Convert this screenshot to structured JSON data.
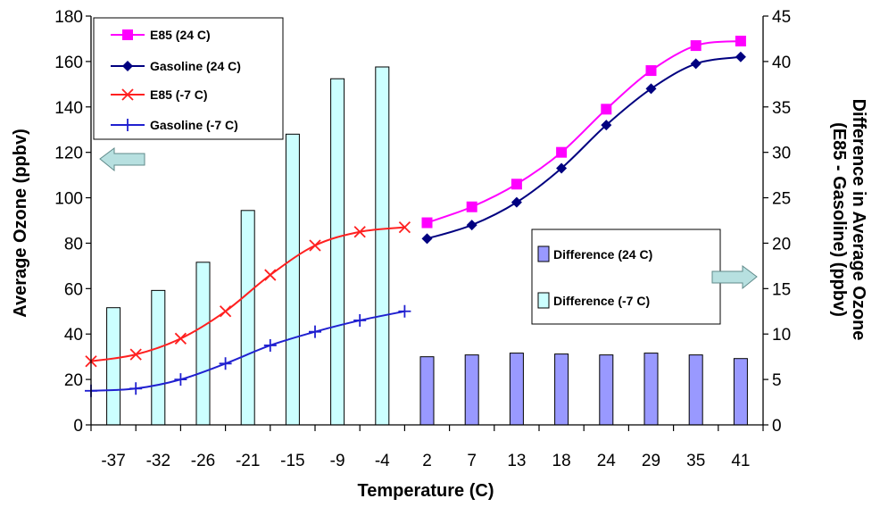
{
  "chart_data": {
    "type": "bar+line",
    "xlabel": "Temperature (C)",
    "ylabel_left": "Average Ozone (ppbv)",
    "ylabel_right_line1": "Difference in Average Ozone",
    "ylabel_right_line2": "(E85 - Gasoline) (ppbv)",
    "categories": [
      "-37",
      "-32",
      "-26",
      "-21",
      "-15",
      "-9",
      "-4",
      "2",
      "7",
      "13",
      "18",
      "24",
      "29",
      "35",
      "41"
    ],
    "ylim_left": [
      0,
      180
    ],
    "yticks_left": [
      0,
      20,
      40,
      60,
      80,
      100,
      120,
      140,
      160,
      180
    ],
    "ylim_right": [
      0,
      45
    ],
    "yticks_right": [
      0,
      5,
      10,
      15,
      20,
      25,
      30,
      35,
      40,
      45
    ],
    "bars": [
      {
        "name": "Difference (24 C)",
        "color": "#9999ff",
        "values": [
          null,
          null,
          null,
          null,
          null,
          null,
          null,
          7.5,
          7.7,
          7.9,
          7.8,
          7.7,
          7.9,
          7.7,
          7.3
        ]
      },
      {
        "name": "Difference (-7 C)",
        "color": "#ccffff",
        "values": [
          12.9,
          14.8,
          17.9,
          23.6,
          32.0,
          38.1,
          39.4,
          null,
          null,
          null,
          null,
          null,
          null,
          null,
          null
        ]
      }
    ],
    "lines": [
      {
        "name": "E85 (24 C)",
        "color": "#ff00ff",
        "marker": "square",
        "offset": 0,
        "values": [
          null,
          null,
          null,
          null,
          null,
          null,
          null,
          89,
          96,
          106,
          120,
          139,
          156,
          167,
          169
        ]
      },
      {
        "name": "Gasoline (24 C)",
        "color": "#000080",
        "marker": "diamond",
        "offset": 0,
        "values": [
          null,
          null,
          null,
          null,
          null,
          null,
          null,
          82,
          88,
          98,
          113,
          132,
          148,
          159,
          162
        ]
      },
      {
        "name": "E85 (-7 C)",
        "color": "#ff2020",
        "marker": "x",
        "offset": -0.5,
        "values": [
          28,
          31,
          38,
          50,
          66,
          79,
          85,
          87,
          null,
          null,
          null,
          null,
          null,
          null,
          null
        ]
      },
      {
        "name": "Gasoline (-7 C)",
        "color": "#2020d0",
        "marker": "plus",
        "offset": -0.5,
        "values": [
          15,
          16,
          20,
          27,
          35,
          41,
          46,
          50,
          null,
          null,
          null,
          null,
          null,
          null,
          null
        ]
      }
    ],
    "legend_lines": [
      "E85 (24 C)",
      "Gasoline (24 C)",
      "E85 (-7 C)",
      "Gasoline (-7 C)"
    ],
    "legend_bars": [
      "Difference (24 C)",
      "Difference (-7 C)"
    ],
    "arrows": {
      "left_color": "#b7e0e0",
      "right_color": "#b7e0e0"
    }
  }
}
